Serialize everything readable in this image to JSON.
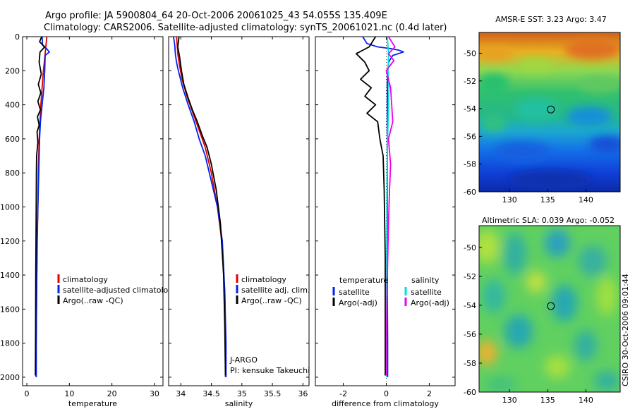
{
  "header": {
    "line1": "Argo profile: JA 5900804_64 20-Oct-2006 20061025_43 54.055S 135.409E",
    "line2": "Climatology: CARS2006. Satellite-adjusted climatology: synTS_20061021.nc (0.4d later)"
  },
  "credit": "CSIRO 30-Oct-2006 09:01:44",
  "colors": {
    "climatology": "#e00000",
    "satellite": "#0022ee",
    "argo": "#000000",
    "sat_sal": "#00e0e0",
    "argo_sal": "#ee00ee"
  },
  "chart_data": [
    {
      "type": "line",
      "name": "temperature-panel",
      "xlabel": "temperature",
      "ylabel": "",
      "xlim": [
        -1,
        32
      ],
      "ylim": [
        0,
        2050
      ],
      "y_reversed": true,
      "xticks": [
        0,
        10,
        20,
        30
      ],
      "yticks": [
        0,
        200,
        400,
        600,
        800,
        1000,
        1200,
        1400,
        1600,
        1800,
        2000
      ],
      "legend": {
        "position": "lower-right",
        "entries": [
          "climatology",
          "satellite-adjusted climatology",
          "Argo(..raw -QC)"
        ]
      },
      "series": [
        {
          "name": "climatology",
          "color": "#e00000",
          "x": [
            4.7,
            4.5,
            4.3,
            4.1,
            3.9,
            3.6,
            3.3,
            3.1,
            2.9,
            2.7,
            2.6,
            2.45,
            2.3,
            2.2,
            2.2
          ],
          "y": [
            0,
            50,
            100,
            150,
            200,
            300,
            400,
            500,
            600,
            800,
            1000,
            1200,
            1500,
            1800,
            2000
          ]
        },
        {
          "name": "satellite-adjusted climatology",
          "color": "#0022ee",
          "x": [
            3.6,
            3.7,
            4.6,
            5.3,
            4.3,
            4.2,
            4.0,
            3.6,
            3.2,
            3.0,
            2.8,
            2.6,
            2.4,
            2.3,
            2.2,
            2.2
          ],
          "y": [
            0,
            50,
            70,
            90,
            110,
            200,
            300,
            400,
            500,
            600,
            800,
            1000,
            1200,
            1500,
            1800,
            2000
          ]
        },
        {
          "name": "Argo(..raw -QC)",
          "color": "#000000",
          "x": [
            3.5,
            3.0,
            4.2,
            3.1,
            2.9,
            3.4,
            2.7,
            3.3,
            2.6,
            3.2,
            2.5,
            2.9,
            2.4,
            2.6,
            2.3,
            2.25,
            2.2,
            2.1,
            2.05,
            2.0
          ],
          "y": [
            0,
            30,
            60,
            90,
            150,
            220,
            280,
            330,
            380,
            430,
            470,
            520,
            560,
            620,
            700,
            800,
            1000,
            1400,
            1800,
            1990
          ]
        }
      ]
    },
    {
      "type": "line",
      "name": "salinity-panel",
      "xlabel": "salinity",
      "ylabel": "",
      "xlim": [
        33.8,
        36.1
      ],
      "ylim": [
        0,
        2050
      ],
      "y_reversed": true,
      "xticks": [
        34,
        34.5,
        35,
        35.5,
        36
      ],
      "legend": {
        "position": "lower-right",
        "entries": [
          "climatology",
          "satellite adj. clim.",
          "Argo(..raw -QC)"
        ]
      },
      "annotation": [
        "J-ARGO",
        "PI: kensuke Takeuchi"
      ],
      "series": [
        {
          "name": "climatology",
          "color": "#e00000",
          "x": [
            33.93,
            33.94,
            33.95,
            33.97,
            34.02,
            34.1,
            34.2,
            34.3,
            34.4,
            34.5,
            34.6,
            34.67,
            34.72,
            34.73,
            34.73
          ],
          "y": [
            0,
            50,
            100,
            150,
            250,
            350,
            450,
            550,
            650,
            800,
            1000,
            1200,
            1500,
            1800,
            2000
          ]
        },
        {
          "name": "satellite adj. clim.",
          "color": "#0022ee",
          "x": [
            33.88,
            33.9,
            33.91,
            33.93,
            33.96,
            34.03,
            34.12,
            34.22,
            34.3,
            34.4,
            34.5,
            34.6,
            34.68,
            34.72,
            34.74,
            34.74
          ],
          "y": [
            0,
            50,
            100,
            150,
            200,
            300,
            400,
            500,
            600,
            700,
            850,
            1000,
            1200,
            1500,
            1800,
            2000
          ]
        },
        {
          "name": "Argo(..raw -QC)",
          "color": "#000000",
          "x": [
            33.97,
            33.95,
            33.98,
            34.01,
            34.05,
            34.12,
            34.19,
            34.27,
            34.35,
            34.43,
            34.5,
            34.58,
            34.65,
            34.7,
            34.72,
            34.73
          ],
          "y": [
            0,
            60,
            120,
            200,
            280,
            360,
            430,
            500,
            580,
            650,
            750,
            900,
            1100,
            1400,
            1700,
            1990
          ]
        }
      ]
    },
    {
      "type": "line",
      "name": "difference-panel",
      "xlabel": "difference from climatology",
      "ylabel": "",
      "xlim": [
        -3.3,
        3.2
      ],
      "ylim": [
        0,
        2050
      ],
      "y_reversed": true,
      "xticks": [
        -2,
        0,
        2
      ],
      "legend": {
        "position": "lower-center",
        "headers": [
          "temperature",
          "salinity"
        ],
        "entries": [
          "satellite",
          "Argo(-adj)",
          "satellite",
          "Argo(-adj)"
        ]
      },
      "series": [
        {
          "name": "temperature satellite",
          "color": "#0022ee",
          "x": [
            -1.1,
            -0.9,
            -0.4,
            0.2,
            0.6,
            0.8,
            0.3,
            0.1,
            0.05,
            0.05,
            0.05,
            0.05,
            0.06,
            0.06
          ],
          "y": [
            0,
            40,
            60,
            70,
            80,
            90,
            110,
            150,
            250,
            500,
            1000,
            1500,
            1800,
            2000
          ]
        },
        {
          "name": "temperature Argo(-adj)",
          "color": "#000000",
          "x": [
            -0.5,
            -0.8,
            -1.4,
            -1.0,
            -0.8,
            -1.2,
            -0.7,
            -1.0,
            -0.5,
            -0.9,
            -0.4,
            -0.3,
            -0.15,
            -0.1,
            -0.05,
            -0.05
          ],
          "y": [
            0,
            60,
            100,
            150,
            200,
            250,
            300,
            350,
            400,
            450,
            500,
            600,
            700,
            900,
            1300,
            1990
          ]
        },
        {
          "name": "salinity satellite",
          "color": "#00e0e0",
          "x": [
            0.05,
            0.1,
            0.08,
            0.12,
            0.1,
            0.08,
            0.06,
            0.05,
            0.04,
            0.03,
            0.02,
            0.02,
            0.02
          ],
          "y": [
            0,
            100,
            200,
            300,
            400,
            500,
            600,
            700,
            800,
            1000,
            1400,
            1800,
            2000
          ]
        },
        {
          "name": "salinity Argo(-adj)",
          "color": "#ee00ee",
          "x": [
            0.1,
            0.4,
            0.1,
            0.35,
            0.0,
            0.2,
            0.3,
            0.1,
            0.2,
            0.15,
            0.1,
            0.05,
            0.02,
            0.02
          ],
          "y": [
            0,
            60,
            100,
            140,
            200,
            300,
            500,
            600,
            750,
            900,
            1100,
            1400,
            1700,
            1990
          ]
        }
      ]
    },
    {
      "type": "heatmap",
      "name": "sst-map",
      "title": "AMSR-E SST: 3.23 Argo: 3.47",
      "xlim": [
        126,
        144.5
      ],
      "ylim": [
        -60,
        -48.5
      ],
      "xticks": [
        130,
        135,
        140
      ],
      "yticks": [
        -50,
        -52,
        -54,
        -56,
        -58,
        -60
      ],
      "marker": {
        "lon": 135.409,
        "lat": -54.055
      }
    },
    {
      "type": "heatmap",
      "name": "sla-map",
      "title": "Altimetric SLA: 0.039 Argo: -0.052",
      "xlim": [
        126,
        144.5
      ],
      "ylim": [
        -60,
        -48.5
      ],
      "xticks": [
        130,
        135,
        140
      ],
      "yticks": [
        -50,
        -52,
        -54,
        -56,
        -58,
        -60
      ],
      "marker": {
        "lon": 135.409,
        "lat": -54.055
      }
    }
  ]
}
